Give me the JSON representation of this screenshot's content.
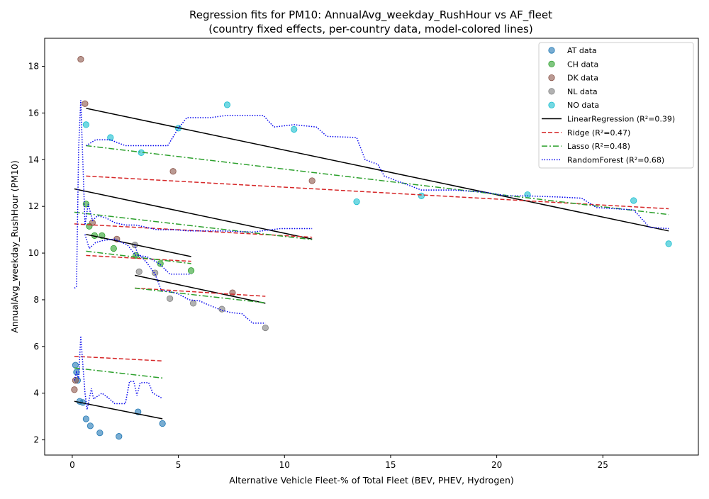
{
  "chart_data": {
    "type": "scatter",
    "title": "Regression fits for PM10: AnnualAvg_weekday_RushHour vs AF_fleet",
    "subtitle": "(country fixed effects, per-country data, model-colored lines)",
    "xlabel": "Alternative Vehicle Fleet-% of Total Fleet (BEV, PHEV, Hydrogen)",
    "ylabel": "AnnualAvg_weekday_RushHour (PM10)",
    "xlim": [
      -1.3,
      29.5
    ],
    "ylim": [
      1.35,
      19.2
    ],
    "xticks": [
      0,
      5,
      10,
      15,
      20,
      25
    ],
    "yticks": [
      2,
      4,
      6,
      8,
      10,
      12,
      14,
      16,
      18
    ],
    "grid": false,
    "legend_position": "top-right",
    "series": [
      {
        "name": "AT data",
        "kind": "scatter",
        "color": "#1f77b4",
        "points": [
          [
            0.15,
            5.2
          ],
          [
            0.2,
            4.9
          ],
          [
            0.25,
            4.55
          ],
          [
            0.35,
            3.65
          ],
          [
            0.5,
            3.6
          ],
          [
            0.65,
            2.9
          ],
          [
            0.85,
            2.6
          ],
          [
            1.3,
            2.3
          ],
          [
            2.2,
            2.15
          ],
          [
            3.1,
            3.2
          ],
          [
            4.25,
            2.7
          ]
        ]
      },
      {
        "name": "CH data",
        "kind": "scatter",
        "color": "#2ca02c",
        "points": [
          [
            0.65,
            12.1
          ],
          [
            0.8,
            11.15
          ],
          [
            1.05,
            10.75
          ],
          [
            1.4,
            10.75
          ],
          [
            1.95,
            10.2
          ],
          [
            3.0,
            9.9
          ],
          [
            4.15,
            9.55
          ],
          [
            5.6,
            9.25
          ]
        ]
      },
      {
        "name": "DK data",
        "kind": "scatter",
        "color": "#8c564b",
        "points": [
          [
            0.1,
            4.15
          ],
          [
            0.15,
            4.55
          ],
          [
            0.4,
            18.3
          ],
          [
            0.6,
            16.4
          ],
          [
            0.95,
            11.3
          ],
          [
            2.1,
            10.6
          ],
          [
            4.75,
            13.5
          ],
          [
            7.55,
            8.3
          ],
          [
            11.3,
            13.1
          ]
        ]
      },
      {
        "name": "NL data",
        "kind": "scatter",
        "color": "#7f7f7f",
        "points": [
          [
            2.95,
            10.35
          ],
          [
            3.15,
            9.2
          ],
          [
            3.9,
            9.15
          ],
          [
            4.6,
            8.05
          ],
          [
            5.7,
            7.85
          ],
          [
            7.05,
            7.6
          ],
          [
            9.1,
            6.8
          ]
        ]
      },
      {
        "name": "NO data",
        "kind": "scatter",
        "color": "#17becf",
        "points": [
          [
            0.65,
            15.5
          ],
          [
            1.8,
            14.95
          ],
          [
            3.25,
            14.3
          ],
          [
            5.0,
            15.35
          ],
          [
            7.3,
            16.35
          ],
          [
            10.45,
            15.3
          ],
          [
            13.4,
            12.2
          ],
          [
            16.45,
            12.45
          ],
          [
            21.45,
            12.5
          ],
          [
            26.45,
            12.25
          ],
          [
            28.1,
            10.4
          ]
        ]
      },
      {
        "name": "LinearRegression (R²=0.39)",
        "kind": "line",
        "color": "#000000",
        "dash": "",
        "segments": [
          [
            [
              0.1,
              3.65
            ],
            [
              4.25,
              2.9
            ]
          ],
          [
            [
              0.1,
              12.75
            ],
            [
              11.3,
              10.6
            ]
          ],
          [
            [
              0.65,
              10.8
            ],
            [
              5.6,
              9.85
            ]
          ],
          [
            [
              2.95,
              9.05
            ],
            [
              9.1,
              7.85
            ]
          ],
          [
            [
              0.65,
              16.2
            ],
            [
              28.1,
              10.95
            ]
          ]
        ]
      },
      {
        "name": "Ridge (R²=0.47)",
        "kind": "line",
        "color": "#d62728",
        "dash": "6,3",
        "segments": [
          [
            [
              0.1,
              5.58
            ],
            [
              4.25,
              5.38
            ]
          ],
          [
            [
              0.1,
              11.25
            ],
            [
              11.3,
              10.68
            ]
          ],
          [
            [
              0.65,
              9.9
            ],
            [
              5.6,
              9.65
            ]
          ],
          [
            [
              2.95,
              8.5
            ],
            [
              9.1,
              8.15
            ]
          ],
          [
            [
              0.65,
              13.3
            ],
            [
              28.1,
              11.9
            ]
          ]
        ]
      },
      {
        "name": "Lasso (R²=0.48)",
        "kind": "line",
        "color": "#2ca02c",
        "dash": "8,3,2,3",
        "segments": [
          [
            [
              0.1,
              5.08
            ],
            [
              4.25,
              4.65
            ]
          ],
          [
            [
              0.1,
              11.75
            ],
            [
              11.3,
              10.58
            ]
          ],
          [
            [
              0.65,
              10.08
            ],
            [
              5.6,
              9.55
            ]
          ],
          [
            [
              2.95,
              8.5
            ],
            [
              9.1,
              7.87
            ]
          ],
          [
            [
              0.65,
              14.6
            ],
            [
              28.1,
              11.65
            ]
          ]
        ]
      },
      {
        "name": "RandomForest (R²=0.68)",
        "kind": "line",
        "color": "#0000ee",
        "dash": "1.5,2",
        "segments": [
          [
            [
              0.1,
              4.55
            ],
            [
              0.2,
              4.9
            ],
            [
              0.3,
              4.6
            ],
            [
              0.4,
              6.45
            ],
            [
              0.5,
              5.2
            ],
            [
              0.6,
              4.0
            ],
            [
              0.7,
              3.3
            ],
            [
              0.9,
              4.2
            ],
            [
              1.0,
              3.75
            ],
            [
              1.4,
              4.0
            ],
            [
              1.7,
              3.8
            ],
            [
              2.0,
              3.55
            ],
            [
              2.5,
              3.55
            ],
            [
              2.7,
              4.5
            ],
            [
              2.9,
              4.5
            ],
            [
              3.05,
              3.9
            ],
            [
              3.2,
              4.45
            ],
            [
              3.6,
              4.45
            ],
            [
              3.8,
              4.0
            ],
            [
              4.2,
              3.8
            ]
          ],
          [
            [
              0.1,
              8.5
            ],
            [
              0.2,
              8.55
            ],
            [
              0.3,
              14.5
            ],
            [
              0.4,
              16.55
            ],
            [
              0.6,
              11.2
            ],
            [
              0.75,
              12.1
            ],
            [
              0.95,
              11.4
            ],
            [
              1.2,
              11.6
            ],
            [
              1.6,
              11.5
            ],
            [
              2.0,
              11.3
            ],
            [
              2.5,
              11.2
            ],
            [
              3.0,
              11.2
            ],
            [
              4.0,
              11.0
            ],
            [
              4.8,
              11.0
            ],
            [
              5.5,
              10.95
            ],
            [
              7.0,
              10.95
            ],
            [
              8.5,
              10.9
            ],
            [
              9.8,
              11.05
            ],
            [
              11.3,
              11.05
            ]
          ],
          [
            [
              0.6,
              10.8
            ],
            [
              0.8,
              10.2
            ],
            [
              1.1,
              10.45
            ],
            [
              1.5,
              10.55
            ],
            [
              2.0,
              10.6
            ],
            [
              2.6,
              10.35
            ],
            [
              3.0,
              9.9
            ],
            [
              3.5,
              9.85
            ],
            [
              4.1,
              9.55
            ],
            [
              4.6,
              9.1
            ],
            [
              5.6,
              9.1
            ]
          ],
          [
            [
              2.95,
              10.35
            ],
            [
              3.1,
              9.9
            ],
            [
              3.2,
              9.9
            ],
            [
              3.5,
              9.6
            ],
            [
              3.9,
              9.1
            ],
            [
              4.2,
              8.4
            ],
            [
              4.6,
              8.35
            ],
            [
              5.0,
              8.25
            ],
            [
              5.5,
              8.0
            ],
            [
              6.0,
              7.95
            ],
            [
              6.5,
              7.75
            ],
            [
              7.05,
              7.55
            ],
            [
              7.5,
              7.45
            ],
            [
              8.0,
              7.4
            ],
            [
              8.5,
              7.0
            ],
            [
              9.1,
              7.0
            ]
          ],
          [
            [
              0.65,
              14.6
            ],
            [
              1.1,
              14.85
            ],
            [
              1.8,
              14.85
            ],
            [
              2.5,
              14.6
            ],
            [
              3.25,
              14.6
            ],
            [
              4.5,
              14.6
            ],
            [
              5.0,
              15.35
            ],
            [
              5.4,
              15.8
            ],
            [
              6.5,
              15.8
            ],
            [
              7.3,
              15.9
            ],
            [
              9.0,
              15.9
            ],
            [
              9.5,
              15.4
            ],
            [
              10.45,
              15.5
            ],
            [
              11.5,
              15.4
            ],
            [
              12.0,
              15.0
            ],
            [
              13.4,
              14.95
            ],
            [
              13.8,
              14.0
            ],
            [
              14.4,
              13.8
            ],
            [
              14.7,
              13.3
            ],
            [
              16.45,
              12.7
            ],
            [
              18.0,
              12.7
            ],
            [
              19.5,
              12.6
            ],
            [
              20.5,
              12.45
            ],
            [
              21.45,
              12.45
            ],
            [
              23.0,
              12.4
            ],
            [
              24.0,
              12.35
            ],
            [
              24.7,
              11.95
            ],
            [
              26.45,
              11.85
            ],
            [
              27.2,
              11.1
            ],
            [
              28.1,
              11.05
            ]
          ]
        ]
      }
    ]
  }
}
